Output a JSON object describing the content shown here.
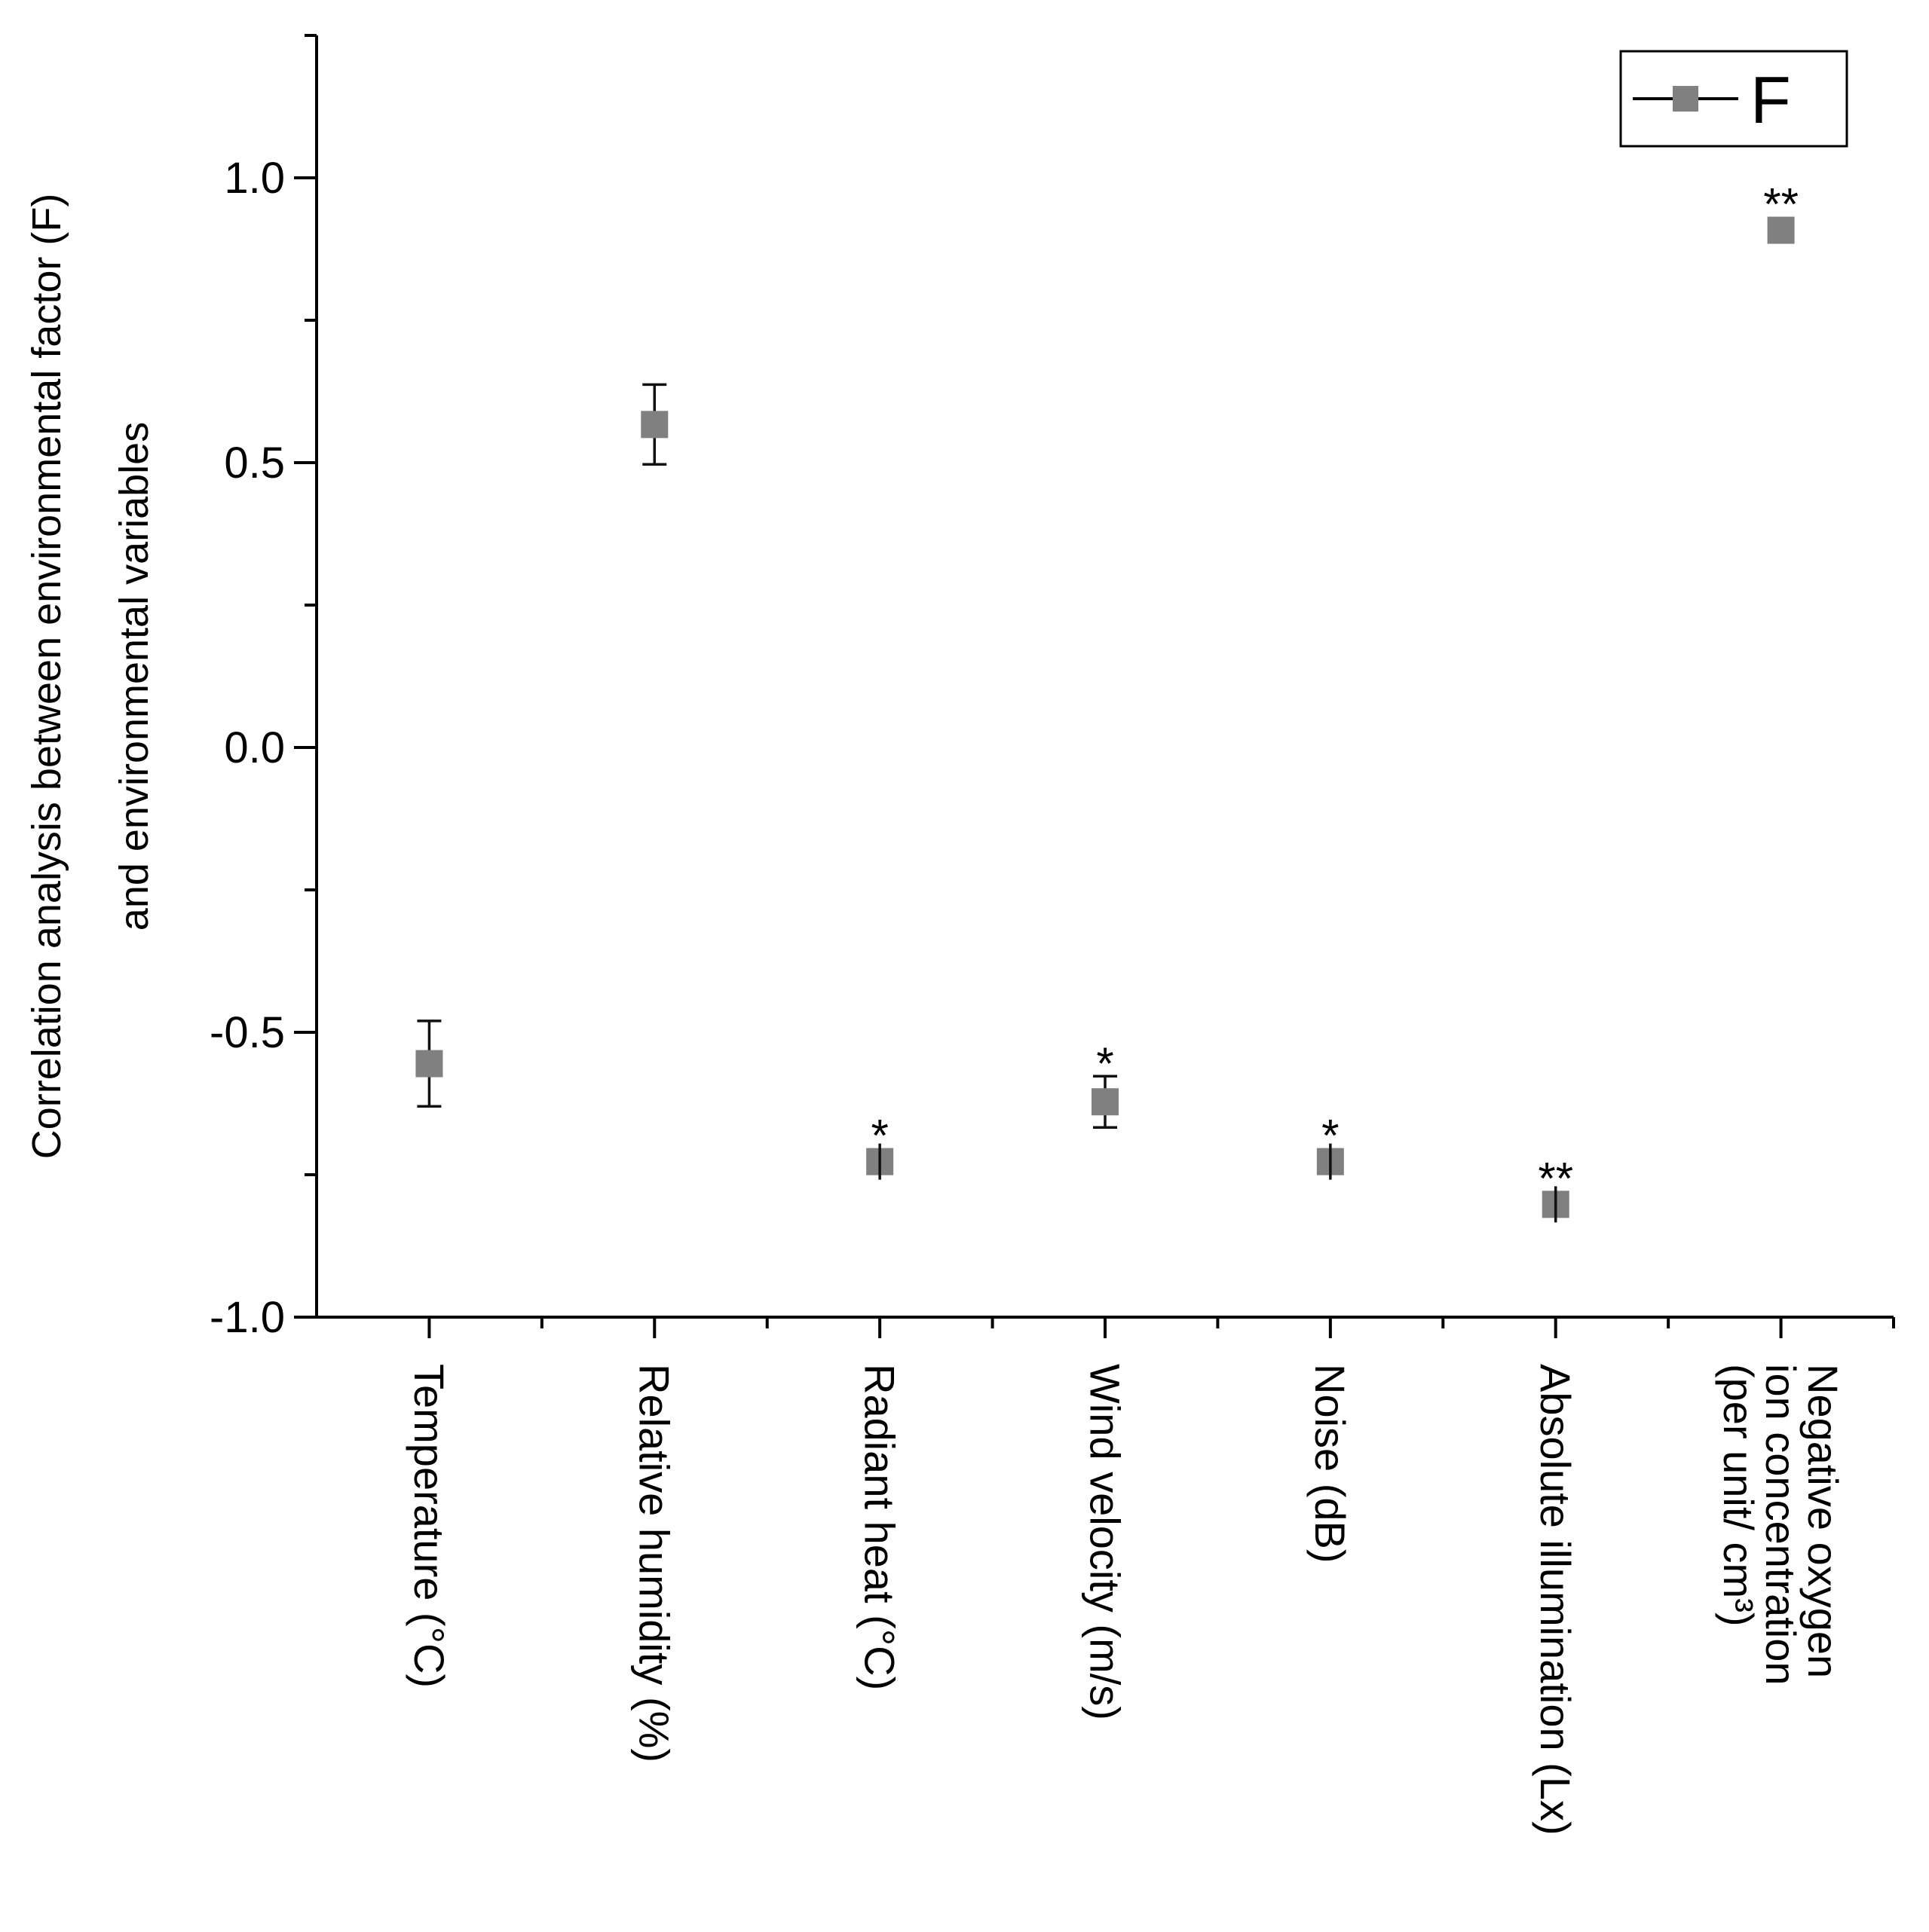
{
  "chart_data": {
    "type": "scatter",
    "ylabel_lines": [
      "Correlation analysis between environmental factor (F)",
      "and environmental variables"
    ],
    "ylim": [
      -1.0,
      1.25
    ],
    "yticks": [
      -1.0,
      -0.5,
      0.0,
      0.5,
      1.0
    ],
    "ytick_labels": [
      "-1.0",
      "-0.5",
      "0.0",
      "0.5",
      "1.0"
    ],
    "grid": false,
    "legend_position": "top-right",
    "categories": [
      {
        "lines": [
          "Temperature (°C)"
        ]
      },
      {
        "lines": [
          "Relative humidity (%)"
        ]
      },
      {
        "lines": [
          "Radiant heat (°C)"
        ]
      },
      {
        "lines": [
          "Wind velocity (m/s)"
        ]
      },
      {
        "lines": [
          "Noise (dB)"
        ]
      },
      {
        "lines": [
          "Absolute illumination (Lx)"
        ]
      },
      {
        "lines": [
          "Negative oxygen",
          "ion concentration",
          "(per unit/ cm³)"
        ]
      }
    ],
    "series": [
      {
        "name": "F",
        "color": "#808080",
        "values": [
          -0.555,
          0.567,
          -0.727,
          -0.622,
          -0.727,
          -0.802,
          0.908
        ],
        "error": [
          0.075,
          0.07,
          0.02,
          0.045,
          0.02,
          0.015,
          0.0
        ],
        "significance": [
          "",
          "",
          "*",
          "*",
          "*",
          "**",
          "**"
        ]
      }
    ]
  }
}
